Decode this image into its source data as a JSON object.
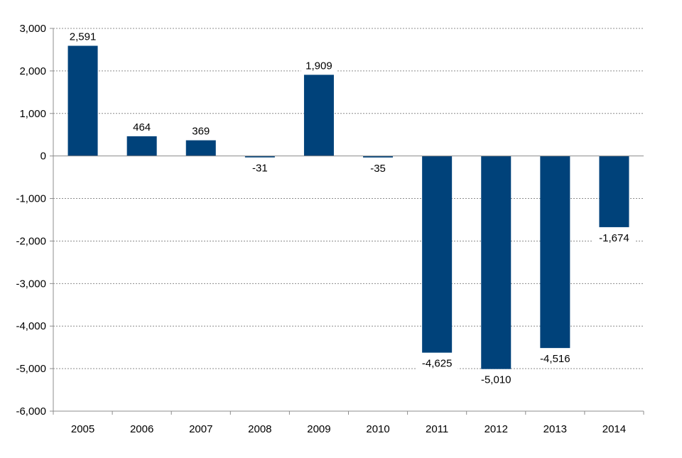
{
  "chart_data": {
    "type": "bar",
    "title": "",
    "xlabel": "",
    "ylabel": "",
    "categories": [
      "2005",
      "2006",
      "2007",
      "2008",
      "2009",
      "2010",
      "2011",
      "2012",
      "2013",
      "2014"
    ],
    "values": [
      2591,
      464,
      369,
      -31,
      1909,
      -35,
      -4625,
      -5010,
      -4516,
      -1674
    ],
    "data_labels": [
      "2,591",
      "464",
      "369",
      "-31",
      "1,909",
      "-35",
      "-4,625",
      "-5,010",
      "-4,516",
      "-1,674"
    ],
    "ylim": [
      -6000,
      3000
    ],
    "yticks": [
      3000,
      2000,
      1000,
      0,
      -1000,
      -2000,
      -3000,
      -4000,
      -5000,
      -6000
    ],
    "ytick_labels": [
      "3,000",
      "2,000",
      "1,000",
      "0",
      "-1,000",
      "-2,000",
      "-3,000",
      "-4,000",
      "-5,000",
      "-6,000"
    ],
    "grid": "horizontal dashed",
    "legend": "none",
    "colors": {
      "bar": "#00427a",
      "grid": "#8c8c8c",
      "axis": "#8c8c8c"
    }
  }
}
